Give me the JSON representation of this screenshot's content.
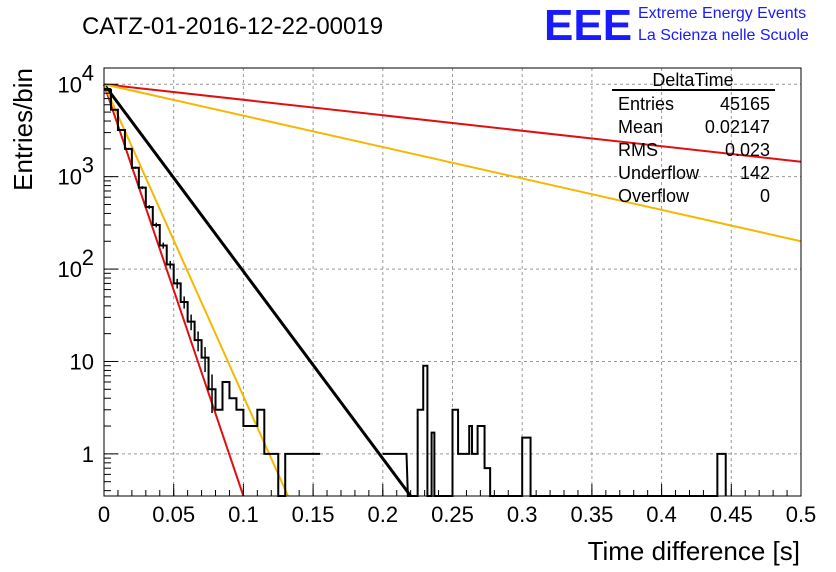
{
  "header": {
    "title": "CATZ-01-2016-12-22-00019",
    "logo": "EEE",
    "logo_line1": "Extreme Energy Events",
    "logo_line2": "La Scienza nelle Scuole",
    "logo_color": "#1a1aff"
  },
  "stats_box": {
    "title": "DeltaTime",
    "rows": [
      {
        "label": "Entries",
        "value": "45165"
      },
      {
        "label": "Mean",
        "value": "0.02147"
      },
      {
        "label": "RMS",
        "value": "0.023"
      },
      {
        "label": "Underflow",
        "value": "142"
      },
      {
        "label": "Overflow",
        "value": "0"
      }
    ]
  },
  "chart_data": {
    "type": "line",
    "xlabel": "Time difference [s]",
    "ylabel": "Entries/bin",
    "xlim": [
      0,
      0.5
    ],
    "ylim": [
      0.35,
      15000
    ],
    "yscale": "log",
    "grid": true,
    "x_ticks": [
      "0",
      "0.05",
      "0.1",
      "0.15",
      "0.2",
      "0.25",
      "0.3",
      "0.35",
      "0.4",
      "0.45",
      "0.5"
    ],
    "y_ticks": [
      {
        "value": 1,
        "label": "1"
      },
      {
        "value": 10,
        "label": "10"
      },
      {
        "value": 100,
        "label": "10",
        "exp": "2"
      },
      {
        "value": 1000,
        "label": "10",
        "exp": "3"
      },
      {
        "value": 10000,
        "label": "10",
        "exp": "4"
      }
    ],
    "histogram": {
      "name": "DeltaTime",
      "color": "#000000",
      "bin_width": 0.005,
      "counts": [
        8700,
        5300,
        3200,
        2000,
        1250,
        760,
        470,
        300,
        180,
        112,
        70,
        44,
        27,
        17,
        11,
        5,
        3,
        6,
        4,
        3,
        2,
        2,
        3,
        1,
        1,
        0,
        1,
        1,
        1,
        1,
        1
      ]
    },
    "histogram_tail": [
      {
        "x": 0.2,
        "y": 1
      },
      {
        "x": 0.217,
        "y": 1
      },
      {
        "x": 0.218,
        "y": 0
      },
      {
        "x": 0.225,
        "y": 0
      },
      {
        "x": 0.225,
        "y": 3
      },
      {
        "x": 0.229,
        "y": 3
      },
      {
        "x": 0.229,
        "y": 9
      },
      {
        "x": 0.232,
        "y": 9
      },
      {
        "x": 0.232,
        "y": 0
      },
      {
        "x": 0.235,
        "y": 0
      },
      {
        "x": 0.235,
        "y": 1.7
      },
      {
        "x": 0.237,
        "y": 1.7
      },
      {
        "x": 0.237,
        "y": 0
      },
      {
        "x": 0.25,
        "y": 0
      },
      {
        "x": 0.25,
        "y": 3
      },
      {
        "x": 0.254,
        "y": 3
      },
      {
        "x": 0.254,
        "y": 1
      },
      {
        "x": 0.262,
        "y": 1
      },
      {
        "x": 0.262,
        "y": 2
      },
      {
        "x": 0.264,
        "y": 2
      },
      {
        "x": 0.264,
        "y": 1
      },
      {
        "x": 0.268,
        "y": 1
      },
      {
        "x": 0.268,
        "y": 2
      },
      {
        "x": 0.273,
        "y": 2
      },
      {
        "x": 0.273,
        "y": 0.7
      },
      {
        "x": 0.277,
        "y": 0.7
      },
      {
        "x": 0.277,
        "y": 0
      },
      {
        "x": 0.3,
        "y": 0
      },
      {
        "x": 0.3,
        "y": 1.5
      },
      {
        "x": 0.306,
        "y": 1.5
      },
      {
        "x": 0.306,
        "y": 0
      },
      {
        "x": 0.44,
        "y": 0
      },
      {
        "x": 0.44,
        "y": 1
      },
      {
        "x": 0.446,
        "y": 1
      },
      {
        "x": 0.446,
        "y": 0
      }
    ],
    "series": [
      {
        "color": "#000000",
        "x": [
          0,
          0.22
        ],
        "y": [
          10000,
          0.35
        ]
      },
      {
        "color": "#e01010",
        "x": [
          0,
          0.1
        ],
        "y": [
          10000,
          0.35
        ]
      },
      {
        "color": "#f5b800",
        "x": [
          0,
          0.132
        ],
        "y": [
          10000,
          0.35
        ]
      },
      {
        "color": "#e01010",
        "x": [
          0,
          0.5
        ],
        "y": [
          10000,
          1450
        ]
      },
      {
        "color": "#f5b800",
        "x": [
          0,
          0.5
        ],
        "y": [
          10000,
          200
        ]
      }
    ]
  }
}
